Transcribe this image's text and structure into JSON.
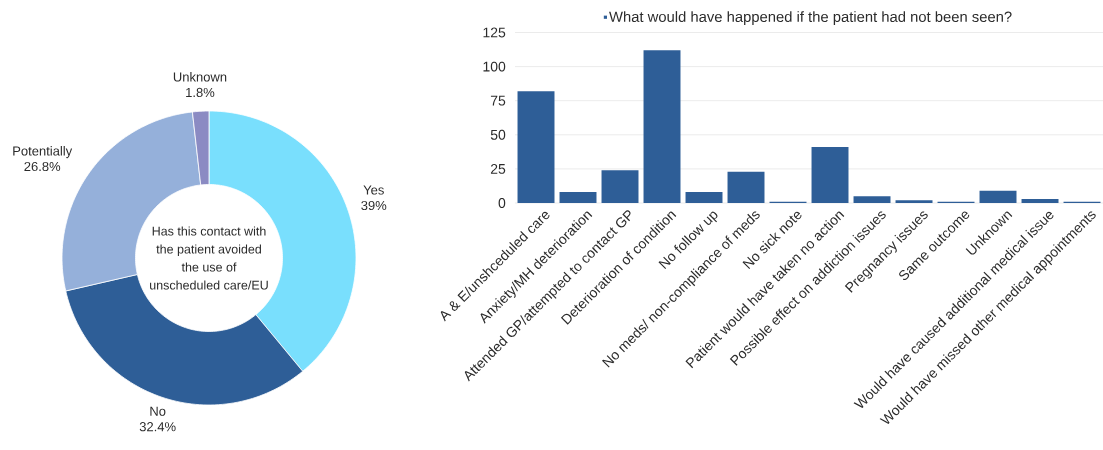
{
  "chart_data": [
    {
      "type": "donut",
      "title": "Has this contact with the patient avoided the use of unscheduled care/EU",
      "categories": [
        "Yes",
        "No",
        "Potentially",
        "Unknown"
      ],
      "values": [
        39,
        32.4,
        26.8,
        1.8
      ],
      "colors": [
        "#79dffd",
        "#2e5e97",
        "#95b0da",
        "#8b8bc3"
      ],
      "value_labels": [
        "39%",
        "32.4%",
        "26.8%",
        "1.8%"
      ]
    },
    {
      "type": "bar",
      "categories": [
        "A & E/unshceduled care",
        "Anxiety/MH deterioration",
        "Attended GP/attempted to contact GP",
        "Deterioration of condition",
        "No follow up",
        "No meds/ non-compliance of meds",
        "No sick note",
        "Patient would have taken no action",
        "Possible effect on addiction issues",
        "Pregnancy issues",
        "Same outcome",
        "Unknown",
        "Would have caused additional medical issue",
        "Would have missed other medical appointments"
      ],
      "series": [
        {
          "name": "What would have happened if the patient had not been seen?",
          "color": "#2e5e97",
          "values": [
            82,
            8,
            24,
            112,
            8,
            23,
            1,
            41,
            5,
            2,
            1,
            9,
            3,
            1
          ]
        }
      ],
      "ylim": [
        0,
        125
      ],
      "yticks": [
        0,
        25,
        50,
        75,
        100,
        125
      ],
      "grid": "y",
      "legend": "top"
    }
  ]
}
